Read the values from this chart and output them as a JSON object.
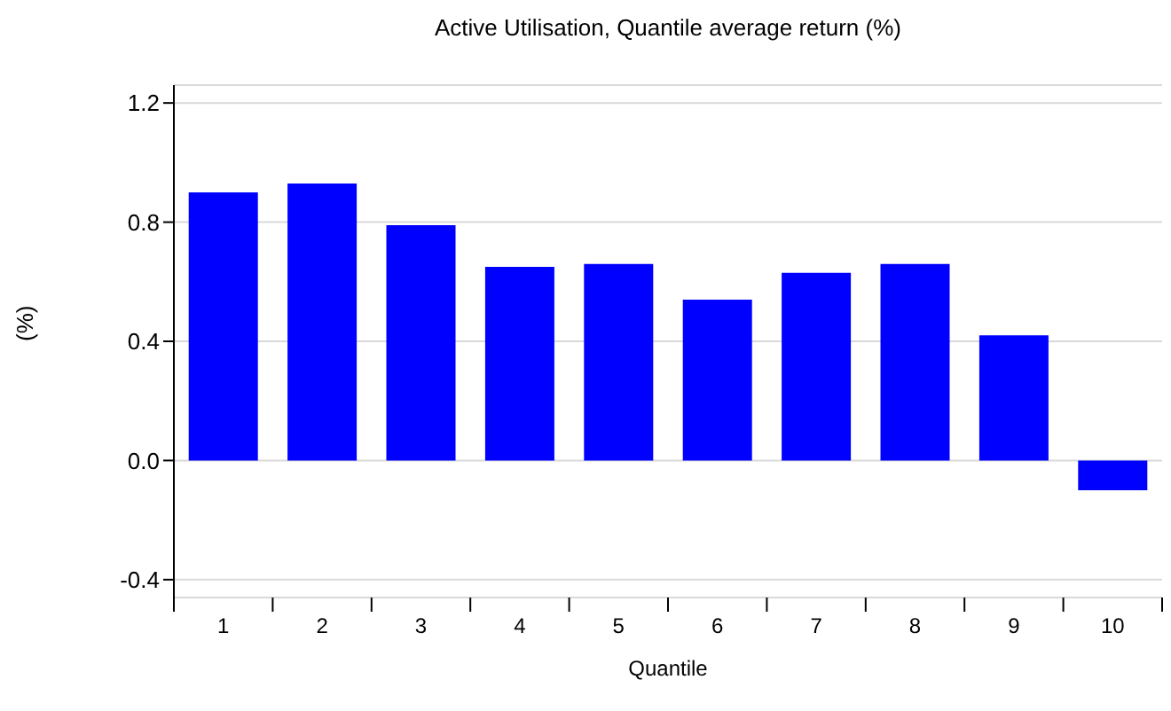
{
  "chart_data": {
    "type": "bar",
    "title": "Active Utilisation, Quantile average return (%)",
    "xlabel": "Quantile",
    "ylabel": "(%)",
    "categories": [
      "1",
      "2",
      "3",
      "4",
      "5",
      "6",
      "7",
      "8",
      "9",
      "10"
    ],
    "values": [
      0.9,
      0.93,
      0.79,
      0.65,
      0.66,
      0.54,
      0.63,
      0.66,
      0.42,
      -0.1
    ],
    "color": "#0000ff",
    "ylim": [
      -0.46,
      1.26
    ],
    "yticks": [
      {
        "value": -0.4,
        "label": "-0.4"
      },
      {
        "value": 0,
        "label": "0.0"
      },
      0.4,
      0.8,
      1.2
    ],
    "grid": "y"
  }
}
